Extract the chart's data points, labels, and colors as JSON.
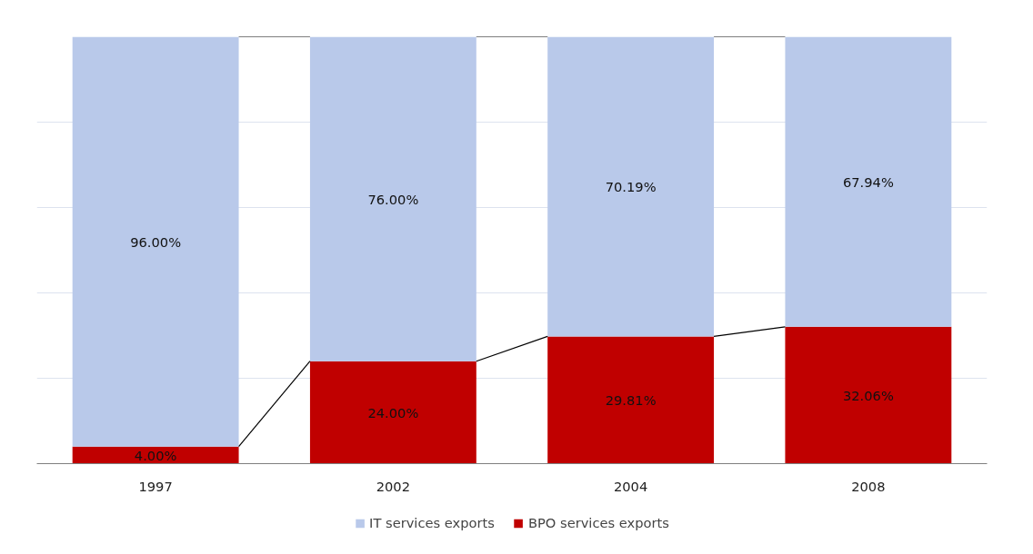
{
  "chart_data": {
    "type": "bar",
    "stacked": true,
    "categories": [
      "1997",
      "2002",
      "2004",
      "2008"
    ],
    "series": [
      {
        "name": "BPO services exports",
        "color": "#c00000",
        "values": [
          4.0,
          24.0,
          29.81,
          32.06
        ],
        "value_labels": [
          "4.00%",
          "24.00%",
          "29.81%",
          "32.06%"
        ]
      },
      {
        "name": "IT services exports",
        "color": "#b9c9ea",
        "values": [
          96.0,
          76.0,
          70.19,
          67.94
        ],
        "value_labels": [
          "96.00%",
          "76.00%",
          "70.19%",
          "67.94%"
        ]
      }
    ],
    "ylim": [
      0,
      100
    ],
    "tick_labels": "x",
    "grid": "y",
    "legend": "bottom"
  }
}
